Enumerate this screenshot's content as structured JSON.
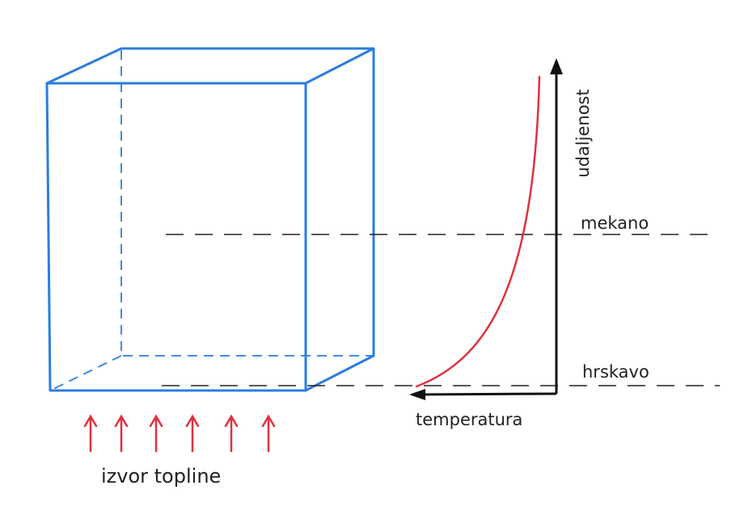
{
  "labels": {
    "axis_y": "udaljenost",
    "axis_x": "temperatura",
    "soft": "mekano",
    "crispy": "hrskavo",
    "source": "izvor topline"
  }
}
